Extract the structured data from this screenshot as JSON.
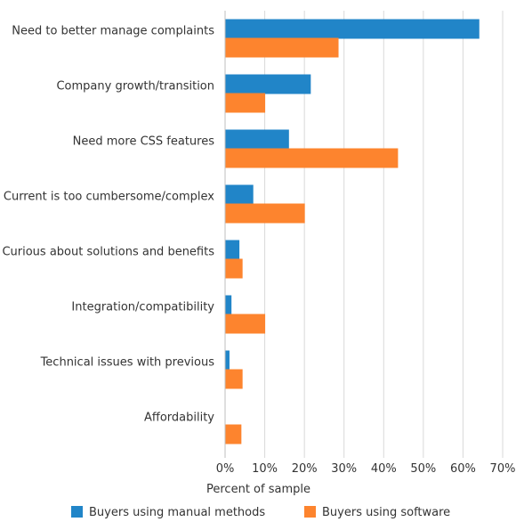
{
  "chart_data": {
    "type": "bar",
    "orientation": "horizontal",
    "categories": [
      "Need to better manage complaints",
      "Company growth/transition",
      "Need more CSS features",
      "Current is too cumbersome/complex",
      "Curious about solutions and benefits",
      "Integration/compatibility",
      "Technical issues with previous",
      "Affordability"
    ],
    "series": [
      {
        "name": "Buyers using manual methods",
        "color": "#2185c8",
        "values": [
          64,
          21.5,
          16,
          7,
          3.5,
          1.5,
          1,
          0
        ]
      },
      {
        "name": "Buyers using software",
        "color": "#fd842e",
        "values": [
          28.5,
          10,
          43.5,
          20,
          4.3,
          10,
          4.3,
          4
        ]
      }
    ],
    "xlabel": "Percent of sample",
    "xlim": [
      0,
      70
    ],
    "xticks": [
      0,
      10,
      20,
      30,
      40,
      50,
      60,
      70
    ],
    "xtick_format": "%",
    "grid": true,
    "legend_position": "bottom"
  }
}
